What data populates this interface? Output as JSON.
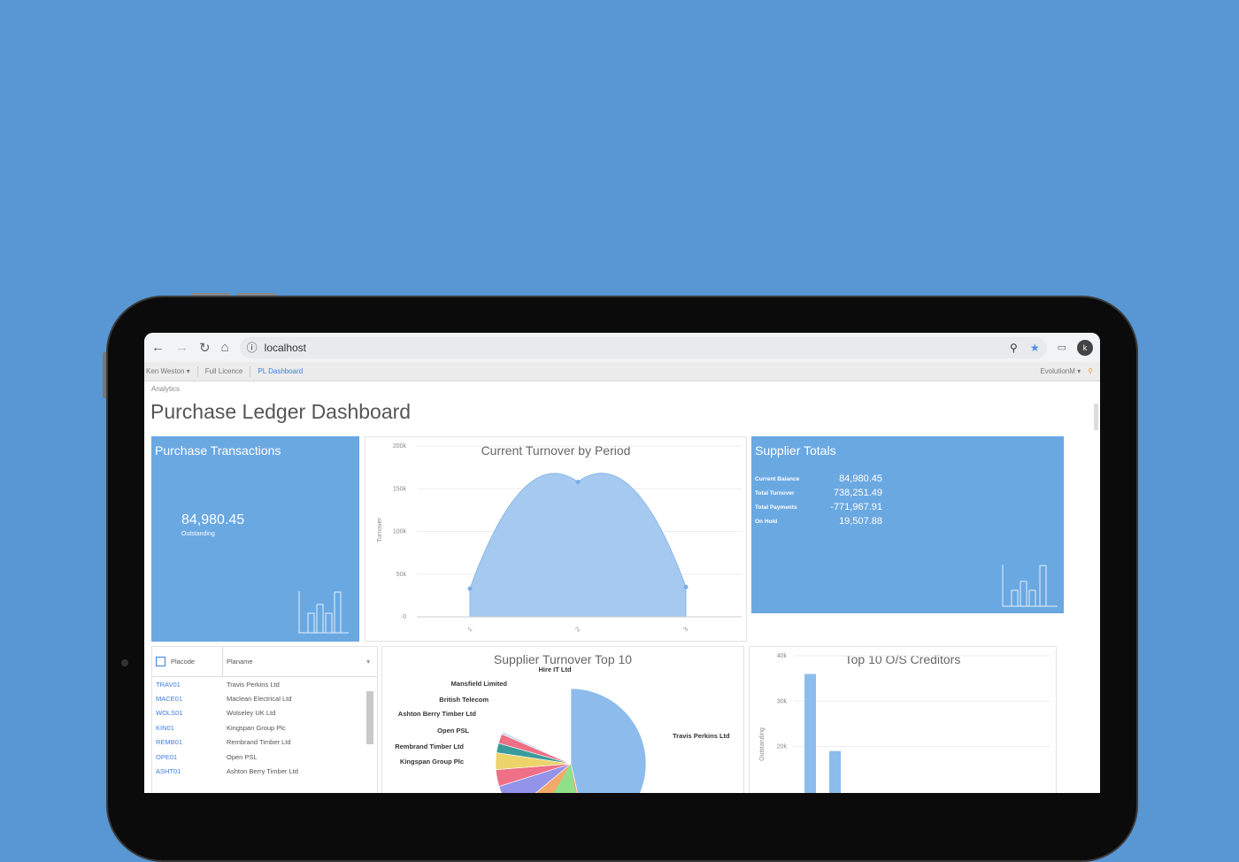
{
  "browser": {
    "url": "localhost",
    "icons": [
      "back-icon",
      "forward-icon",
      "reload-icon",
      "home-icon",
      "info-icon",
      "zoom-icon",
      "star-icon",
      "cast-icon"
    ],
    "avatar": "k"
  },
  "appbar": {
    "user": "Ken Weston",
    "licence": "Full Licence",
    "active": "PL Dashboard",
    "company": "EvolutionM"
  },
  "breadcrumb": "Analytics",
  "page_title": "Purchase Ledger Dashboard",
  "purchase_transactions": {
    "title": "Purchase Transactions",
    "value": "84,980.45",
    "caption": "Outstanding"
  },
  "supplier_totals": {
    "title": "Supplier Totals",
    "rows": [
      {
        "label": "Current Balance",
        "value": "84,980.45"
      },
      {
        "label": "Total Turnover",
        "value": "738,251.49"
      },
      {
        "label": "Total Payments",
        "value": "-771,967.91"
      },
      {
        "label": "On Hold",
        "value": "19,507.88"
      }
    ]
  },
  "colors": {
    "background": "#5897d3",
    "tile": "#6aa8e2",
    "series": "#a6c9ef",
    "link": "#3d7fe0"
  },
  "supplier_table": {
    "columns": [
      "Placode",
      "Planame"
    ],
    "rows": [
      [
        "TRAV01",
        "Travis Perkins Ltd"
      ],
      [
        "MACE01",
        "Maclean Electrical Ltd"
      ],
      [
        "WOLS01",
        "Wolseley UK Ltd"
      ],
      [
        "KIN01",
        "Kingspan Group Plc"
      ],
      [
        "REMB01",
        "Rembrand Timber Ltd"
      ],
      [
        "OPE01",
        "Open PSL"
      ],
      [
        "ASHT01",
        "Ashton Berry Timber Ltd"
      ]
    ]
  },
  "chart_data": [
    {
      "type": "area",
      "title": "Current Turnover by Period",
      "ylabel": "Turnover",
      "categories": [
        "1",
        "2",
        "3"
      ],
      "values": [
        33000,
        158000,
        35000
      ],
      "ylim": [
        0,
        200000
      ],
      "yticks": [
        "0",
        "50k",
        "100k",
        "150k",
        "200k"
      ],
      "grid": true
    },
    {
      "type": "pie",
      "title": "Supplier Turnover Top 10",
      "labels": [
        "Travis Perkins Ltd",
        "Kingspan Group Plc",
        "Rembrand Timber Ltd",
        "Open PSL",
        "Ashton Berry Timber Ltd",
        "British Telecom",
        "Mansfield Limited",
        "Hire IT Ltd"
      ],
      "values": [
        45,
        17,
        6,
        3.5,
        3.5,
        2,
        2,
        0.5
      ],
      "colors": [
        "#8dbcec",
        "#f4a86a",
        "#9493ea",
        "#ee6f86",
        "#ecd36a",
        "#3a9b9b",
        "#ee6f86",
        "#c4d8f2"
      ]
    },
    {
      "type": "bar",
      "title": "Top 10 O/S Creditors",
      "ylabel": "Outstanding",
      "values": [
        36000,
        19000
      ],
      "ylim": [
        0,
        40000
      ],
      "yticks": [
        "20k",
        "30k",
        "40k"
      ],
      "grid": true
    }
  ]
}
